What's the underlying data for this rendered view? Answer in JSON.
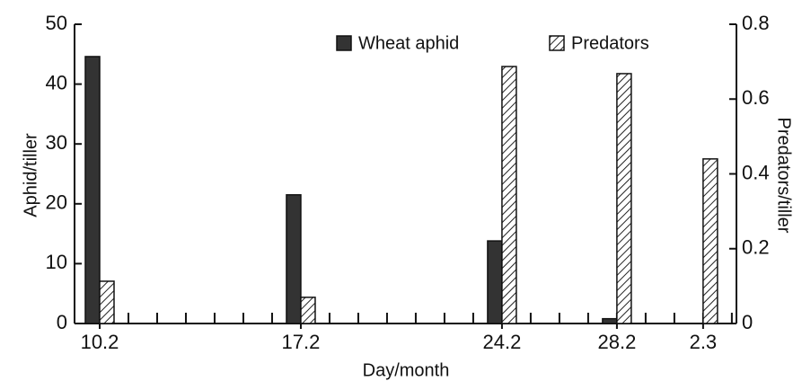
{
  "chart_data": {
    "type": "bar",
    "x": [
      0,
      7,
      14,
      18,
      21
    ],
    "series": [
      {
        "name": "Wheat aphid",
        "color": "#333333",
        "values": [
          44.6,
          21.5,
          13.8,
          0.8,
          null
        ]
      },
      {
        "name": "Predators",
        "color": "hatch",
        "axis": "y2",
        "values": [
          0.113,
          0.07,
          0.687,
          0.668,
          0.44
        ]
      }
    ],
    "xlim": [
      -0.875,
      22.16
    ],
    "xticks": [
      {
        "value": 0,
        "label": "10.2"
      },
      {
        "value": 7,
        "label": "17.2"
      },
      {
        "value": 14,
        "label": "24.2"
      },
      {
        "value": 18,
        "label": "28.2"
      },
      {
        "value": 21,
        "label": "2.3"
      }
    ],
    "ylim": [
      0,
      50
    ],
    "yticks": [
      0,
      10,
      20,
      30,
      40,
      50
    ],
    "y2lim": [
      0,
      0.8
    ],
    "y2ticks": [
      0,
      0.2,
      0.4,
      0.6,
      0.8
    ],
    "y_label": "Aphid/tiller",
    "y2_label": "Predators/tiller",
    "x_label": "Day/month",
    "legend": "top"
  }
}
